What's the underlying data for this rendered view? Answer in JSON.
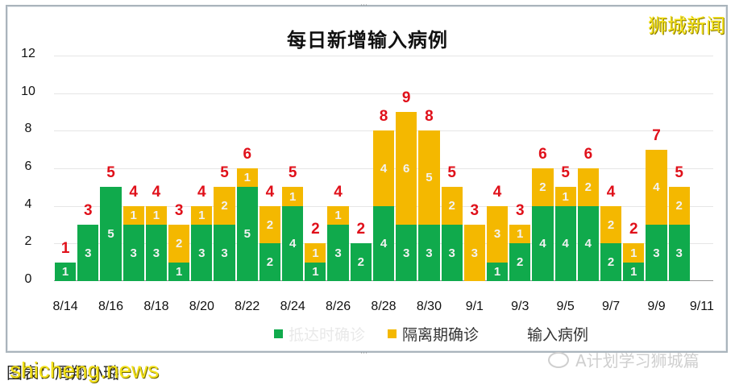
{
  "header": {
    "title": "每日新增输入病例",
    "brand": "狮城新闻"
  },
  "legend": {
    "items": [
      {
        "label": "抵达时确诊",
        "color": "#10aa4c"
      },
      {
        "label": "隔离期确诊",
        "color": "#f4b800"
      },
      {
        "label": "输入病例",
        "color": "#e0101a"
      }
    ]
  },
  "footer": {
    "caption": "图表：周翔小璐",
    "overlay": "shicheng.news",
    "watermark": "A计划学习狮城篇"
  },
  "chart_data": {
    "type": "bar",
    "stacked": true,
    "title": "每日新增输入病例",
    "xlabel": "",
    "ylabel": "",
    "ylim": [
      0,
      12
    ],
    "yticks": [
      0,
      2,
      4,
      6,
      8,
      10,
      12
    ],
    "grid": true,
    "legend_position": "bottom",
    "x_tick_labels": [
      "8/14",
      "8/16",
      "8/18",
      "8/20",
      "8/22",
      "8/24",
      "8/26",
      "8/28",
      "8/30",
      "9/1",
      "9/3",
      "9/5",
      "9/7",
      "9/9",
      "9/11"
    ],
    "categories": [
      "8/14",
      "8/15",
      "8/16",
      "8/17",
      "8/18",
      "8/19",
      "8/20",
      "8/21",
      "8/22",
      "8/23",
      "8/24",
      "8/25",
      "8/26",
      "8/27",
      "8/28",
      "8/29",
      "8/30",
      "8/31",
      "9/1",
      "9/2",
      "9/3",
      "9/4",
      "9/5",
      "9/6",
      "9/7",
      "9/8",
      "9/9",
      "9/10",
      "9/11"
    ],
    "series": [
      {
        "name": "抵达时确诊",
        "color": "#10aa4c",
        "values": [
          1,
          3,
          5,
          3,
          3,
          1,
          3,
          3,
          5,
          2,
          4,
          1,
          3,
          2,
          4,
          3,
          3,
          3,
          0,
          1,
          2,
          4,
          4,
          4,
          2,
          1,
          3,
          3,
          null
        ]
      },
      {
        "name": "隔离期确诊",
        "color": "#f4b800",
        "values": [
          0,
          0,
          0,
          1,
          1,
          2,
          1,
          2,
          1,
          2,
          1,
          1,
          1,
          0,
          4,
          6,
          5,
          2,
          3,
          3,
          1,
          2,
          1,
          2,
          2,
          1,
          4,
          2,
          null
        ]
      },
      {
        "name": "输入病例",
        "color": "#e0101a",
        "values": [
          1,
          3,
          5,
          4,
          4,
          3,
          4,
          5,
          6,
          4,
          5,
          2,
          4,
          2,
          8,
          9,
          8,
          5,
          3,
          4,
          3,
          6,
          5,
          6,
          4,
          2,
          7,
          5,
          null
        ]
      }
    ]
  }
}
